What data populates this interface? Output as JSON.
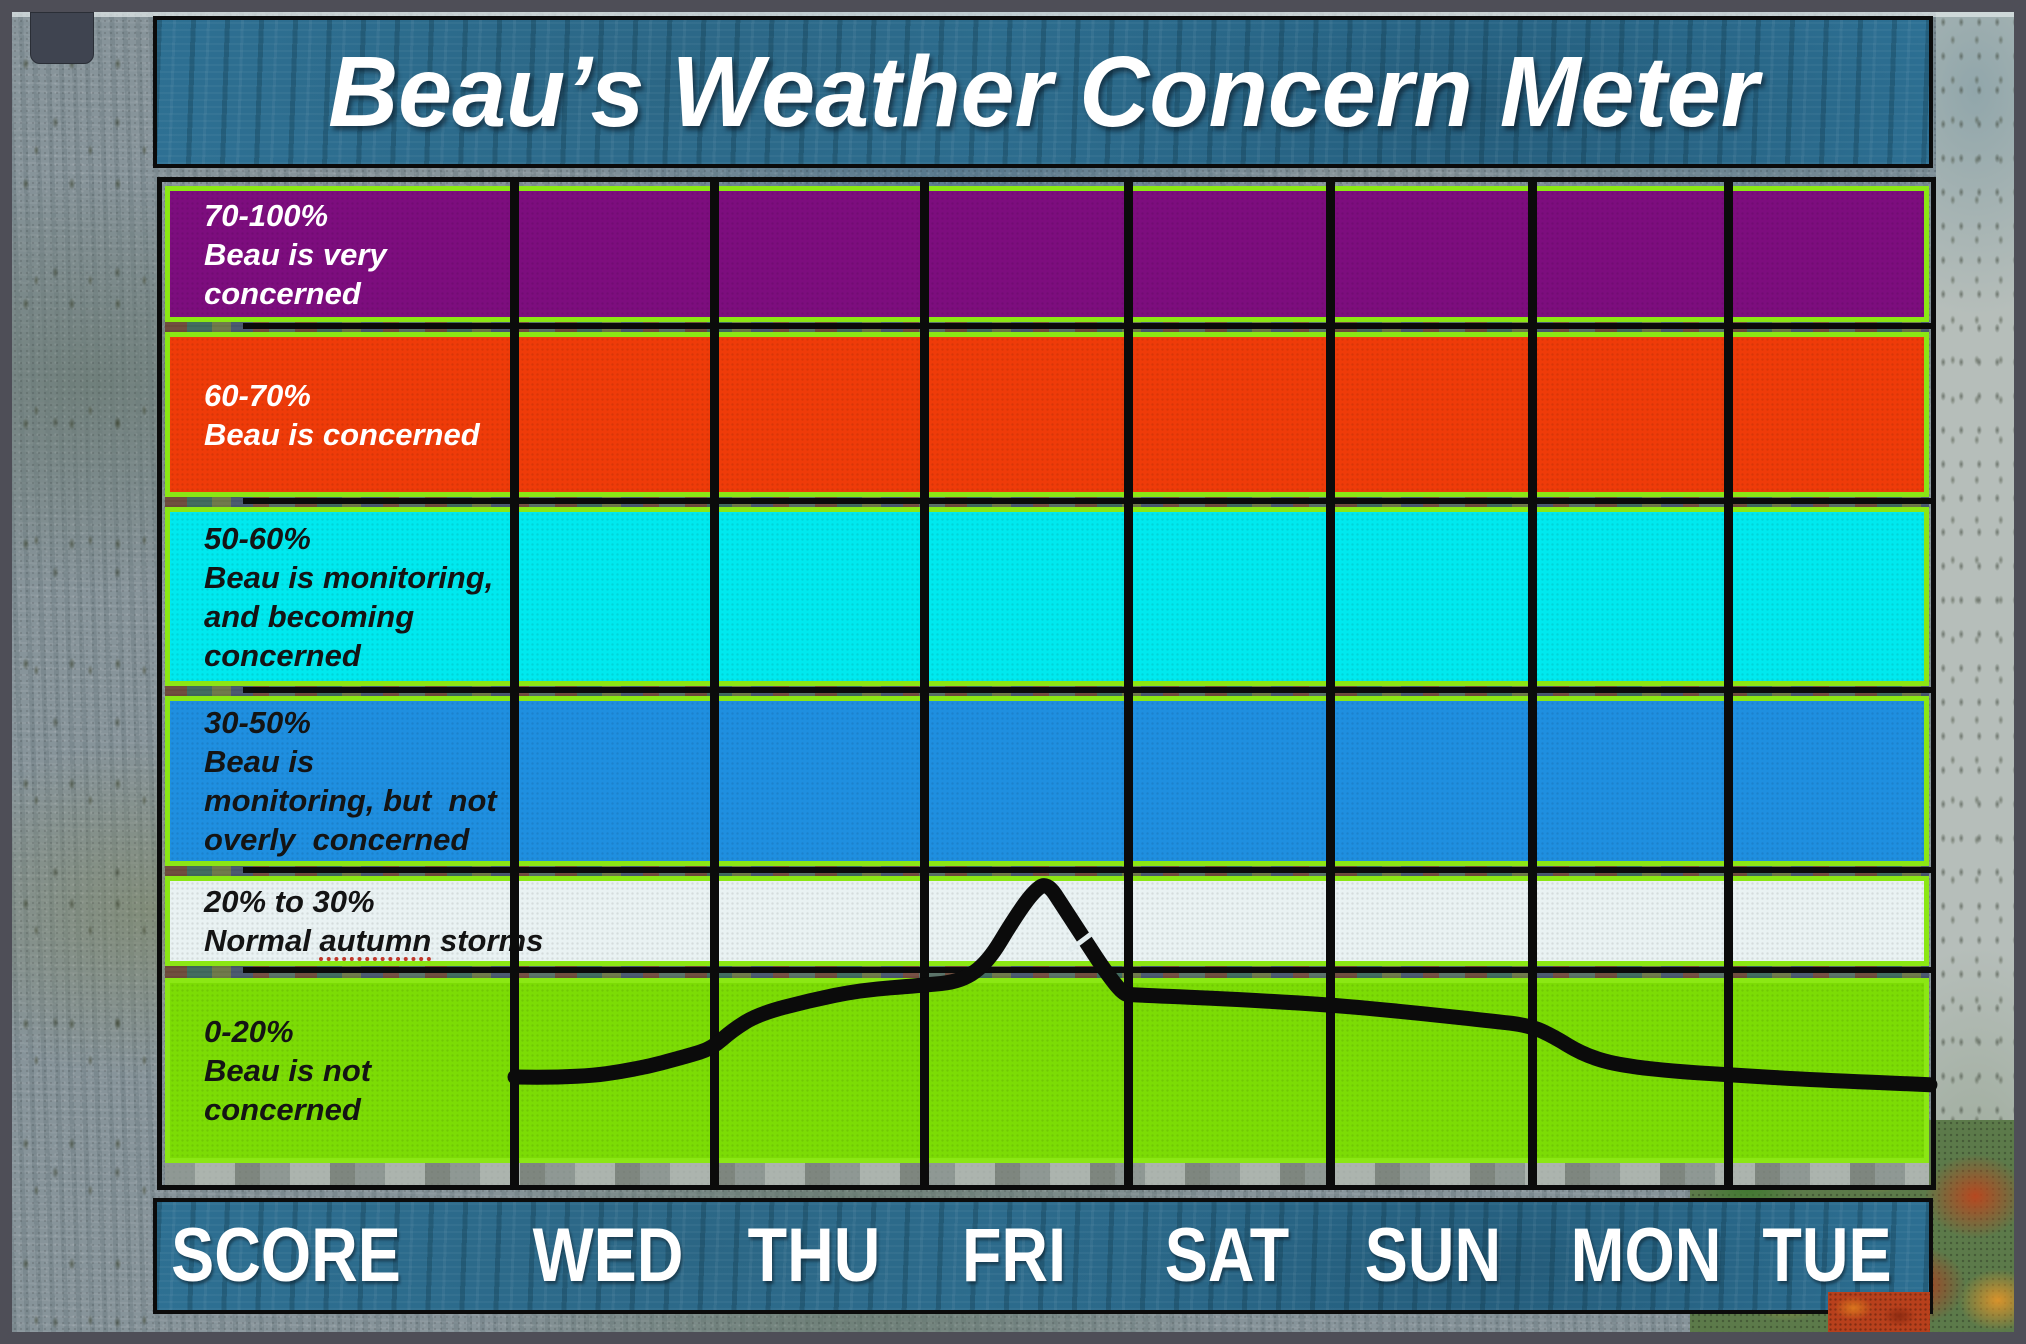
{
  "window": {
    "title": "Beau’s Weather Concern Meter"
  },
  "colors": {
    "frame": "#4E4E57",
    "banner_teal": "#2E7296",
    "grid_black": "#0B0B0B",
    "band_border_lime": "#8BE714",
    "curve_black": "#0B0B0B",
    "misspell_red": "#C0392B"
  },
  "bands": [
    {
      "id": "very-concerned",
      "range_label": "70-100%",
      "description": "Beau is very concerned",
      "lines": [
        "70-100%",
        "Beau is very",
        "concerned"
      ],
      "fill": "#7D0D7E",
      "text_color": "#FFFFFF"
    },
    {
      "id": "concerned",
      "range_label": "60-70%",
      "description": "Beau is concerned",
      "lines": [
        "60-70%",
        "Beau is concerned"
      ],
      "fill": "#EF3B09",
      "text_color": "#FFFFFF"
    },
    {
      "id": "monitoring-becoming-concerned",
      "range_label": "50-60%",
      "description": "Beau is monitoring, and becoming concerned",
      "lines": [
        "50-60%",
        "Beau is monitoring,",
        "and becoming",
        "concerned"
      ],
      "fill": "#00E9EF",
      "text_color": "#141414"
    },
    {
      "id": "monitoring-not-overly-concerned",
      "range_label": "30-50%",
      "description": "Beau is monitoring, but not overly concerned",
      "lines": [
        "30-50%",
        "Beau is",
        "monitoring, but  not",
        "overly  concerned"
      ],
      "fill": "#1F8FE0",
      "text_color": "#141414"
    },
    {
      "id": "normal-autumn-storms",
      "range_label": "20% to 30%",
      "description": "Normal autumn storms",
      "lines": [
        "20% to 30%",
        "Normal autumn storms"
      ],
      "fill": "#E9F2F3",
      "text_color": "#141414",
      "misspelled_word": "autumn"
    },
    {
      "id": "not-concerned",
      "range_label": "0-20%",
      "description": "Beau is not concerned",
      "lines": [
        "0-20%",
        "Beau is not",
        "concerned"
      ],
      "fill": "#7CDC05",
      "text_color": "#141414"
    }
  ],
  "axis": {
    "score_label": "SCORE",
    "days": [
      "WED",
      "THU",
      "FRI",
      "SAT",
      "SUN",
      "MON",
      "TUE"
    ]
  },
  "chart_data": {
    "type": "line",
    "title": "Beau’s Weather Concern Meter",
    "x_categories": [
      "WED",
      "THU",
      "FRI",
      "SAT",
      "SUN",
      "MON",
      "TUE"
    ],
    "y_unit": "percent concern (0-100)",
    "ylim": [
      0,
      100
    ],
    "legend": "none",
    "y_zones": [
      {
        "min": 0,
        "max": 20,
        "label": "Beau is not concerned",
        "color": "#7CDC05"
      },
      {
        "min": 20,
        "max": 30,
        "label": "Normal autumn storms",
        "color": "#E9F2F3"
      },
      {
        "min": 30,
        "max": 50,
        "label": "Beau is monitoring, but not overly concerned",
        "color": "#1F8FE0"
      },
      {
        "min": 50,
        "max": 60,
        "label": "Beau is monitoring, and becoming concerned",
        "color": "#00E9EF"
      },
      {
        "min": 60,
        "max": 70,
        "label": "Beau is concerned",
        "color": "#EF3B09"
      },
      {
        "min": 70,
        "max": 100,
        "label": "Beau is very concerned",
        "color": "#7D0D7E"
      }
    ],
    "daily_approx_pct": {
      "WED": 10,
      "THU": 17,
      "FRI": 29,
      "SAT": 17,
      "SUN": 15,
      "MON": 10,
      "TUE": 8
    },
    "series": [
      {
        "name": "concern-score-curve",
        "points_day_units_pct": [
          [
            0.0,
            9.0
          ],
          [
            0.3,
            8.9
          ],
          [
            0.6,
            9.8
          ],
          [
            0.85,
            11.2
          ],
          [
            0.97,
            12.0
          ],
          [
            1.07,
            13.9
          ],
          [
            1.2,
            15.6
          ],
          [
            1.45,
            17.0
          ],
          [
            1.7,
            18.1
          ],
          [
            2.0,
            18.6
          ],
          [
            2.2,
            19.0
          ],
          [
            2.33,
            21.0
          ],
          [
            2.45,
            25.0
          ],
          [
            2.55,
            27.9
          ],
          [
            2.62,
            28.9
          ],
          [
            2.7,
            26.5
          ],
          [
            2.98,
            17.7
          ],
          [
            3.05,
            17.6
          ],
          [
            3.4,
            17.3
          ],
          [
            4.0,
            16.6
          ],
          [
            4.4,
            15.8
          ],
          [
            4.8,
            14.9
          ],
          [
            5.0,
            14.4
          ],
          [
            5.12,
            13.2
          ],
          [
            5.25,
            11.5
          ],
          [
            5.4,
            10.4
          ],
          [
            5.65,
            9.7
          ],
          [
            6.0,
            9.2
          ],
          [
            6.4,
            8.7
          ],
          [
            6.97,
            8.2
          ]
        ]
      }
    ],
    "x_note": "day units: 0 = left edge of WED column, 1 column = 1 day"
  }
}
